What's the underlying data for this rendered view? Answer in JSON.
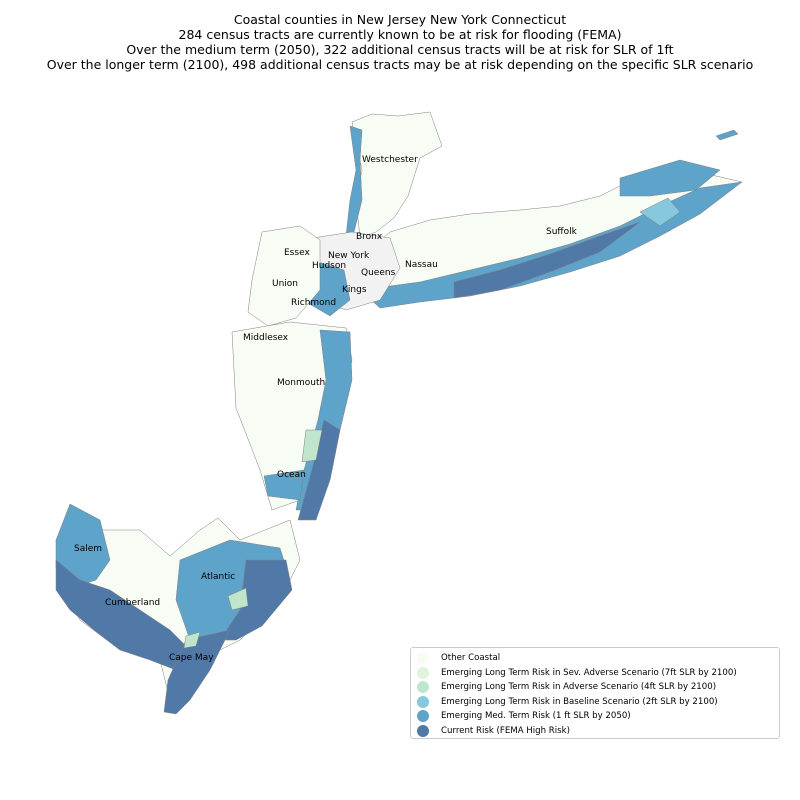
{
  "title": {
    "line1": "Coastal counties in New Jersey New York Connecticut",
    "line2": "284 census tracts are currently known to be at risk for flooding (FEMA)",
    "line3": "Over the medium term (2050), 322 additional census tracts will be at risk for SLR of 1ft",
    "line4": "Over the longer term (2100), 498 additional census tracts may be at risk depending on the specific SLR scenario"
  },
  "counties": {
    "westchester": "Westchester",
    "suffolk": "Suffolk",
    "bronx": "Bronx",
    "essex": "Essex",
    "new_york": "New York",
    "hudson": "Hudson",
    "nassau": "Nassau",
    "queens": "Queens",
    "union": "Union",
    "kings": "Kings",
    "richmond": "Richmond",
    "middlesex": "Middlesex",
    "monmouth": "Monmouth",
    "ocean": "Ocean",
    "salem": "Salem",
    "atlantic": "Atlantic",
    "cumberland": "Cumberland",
    "cape_may": "Cape May"
  },
  "legend": [
    {
      "label": "Other Coastal",
      "color": "#f7fcf5"
    },
    {
      "label": "Emerging Long Term Risk in Sev. Adverse Scenario (7ft SLR by 2100)",
      "color": "#e0f3db"
    },
    {
      "label": "Emerging Long Term Risk in Adverse Scenario (4ft SLR by 2100)",
      "color": "#bfe6cd"
    },
    {
      "label": "Emerging Long Term Risk in Baseline Scenario (2ft SLR by 2100)",
      "color": "#86c8dd"
    },
    {
      "label": "Emerging Med. Term Risk (1 ft SLR by 2050)",
      "color": "#5ea3c9"
    },
    {
      "label": "Current Risk (FEMA High Risk)",
      "color": "#5179a8"
    }
  ],
  "colors": {
    "other": "#f7fcf5",
    "sev_adverse": "#e0f3db",
    "adverse": "#bfe6cd",
    "baseline": "#86c8dd",
    "med_term": "#5ea3c9",
    "current": "#5179a8",
    "border": "#808080"
  }
}
